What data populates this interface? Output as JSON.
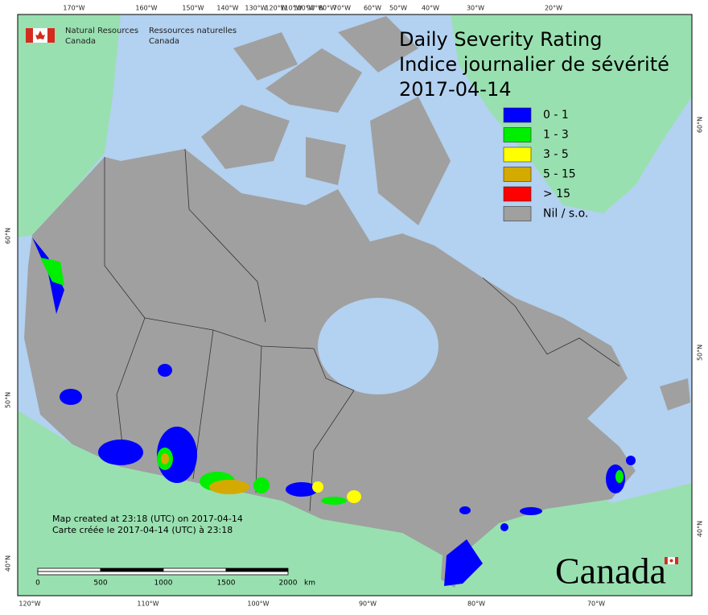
{
  "header": {
    "org_en": [
      "Natural Resources",
      "Canada"
    ],
    "org_fr": [
      "Ressources naturelles",
      "Canada"
    ]
  },
  "title": [
    "Daily Severity Rating",
    "Indice journalier de sévérité",
    "2017-04-14"
  ],
  "legend": [
    {
      "label": "0 - 1",
      "color": "#0000ff"
    },
    {
      "label": "1 - 3",
      "color": "#00ee00"
    },
    {
      "label": "3 - 5",
      "color": "#ffff00"
    },
    {
      "label": "5 - 15",
      "color": "#d4aa00"
    },
    {
      "label": "> 15",
      "color": "#ff0000"
    },
    {
      "label": "Nil / s.o.",
      "color": "#a0a0a0"
    }
  ],
  "graticule": {
    "top": [
      "170°W",
      "160°W",
      "150°W",
      "140°W",
      "130°W",
      "120°W",
      "110°W",
      "100°W",
      "90°W",
      "80°W",
      "70°W",
      "60°W",
      "50°W",
      "40°W",
      "30°W",
      "20°W"
    ],
    "bottom": [
      "120°W",
      "110°W",
      "100°W",
      "90°W",
      "80°W",
      "70°W"
    ],
    "left": [
      "60°N",
      "50°N",
      "40°N"
    ],
    "right": [
      "60°N",
      "50°N",
      "40°N"
    ]
  },
  "note": [
    "Map created at 23:18 (UTC) on 2017-04-14",
    "Carte créée le 2017-04-14 (UTC) à 23:18"
  ],
  "scale": {
    "ticks": [
      "0",
      "500",
      "1000",
      "1500",
      "2000"
    ],
    "unit": "km"
  },
  "wordmark": "Canada"
}
